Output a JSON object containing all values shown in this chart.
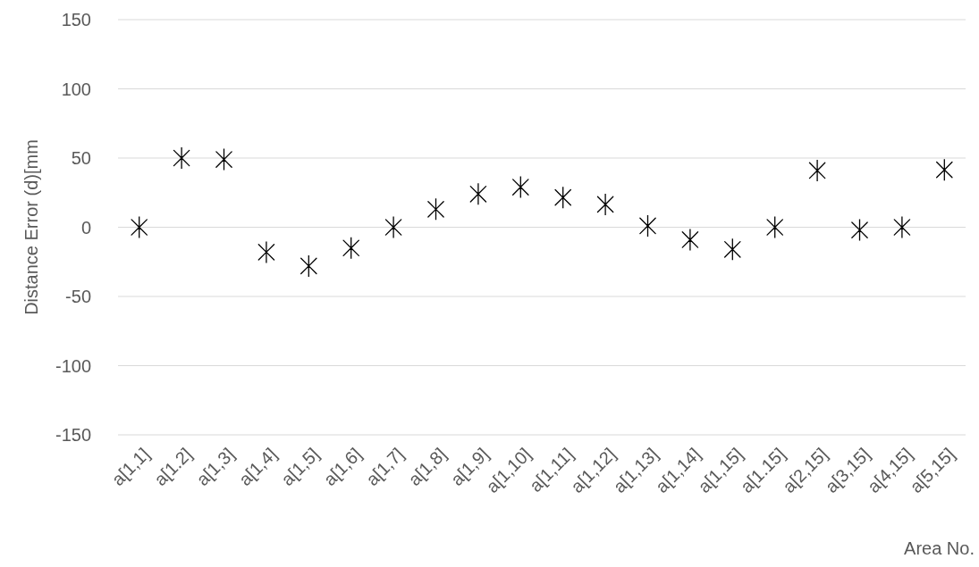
{
  "chart_data": {
    "type": "scatter",
    "xlabel": "Area No.",
    "ylabel": "Distance Error (d)[mm",
    "categories": [
      "a[1,1]",
      "a[1.2]",
      "a[1,3]",
      "a[1,4]",
      "a[1,5]",
      "a[1,6]",
      "a[1,7]",
      "a[1,8]",
      "a[1,9]",
      "a[1,10]",
      "a[1,11]",
      "a[1,12]",
      "a[1,13]",
      "a[1,14]",
      "a[1,15]",
      "a[1.15]",
      "a[2,15]",
      "a[3,15]",
      "a[4,15]",
      "a[5,15]"
    ],
    "series": [
      {
        "color": "#000000",
        "values": [
          0,
          50,
          49,
          -18,
          -28,
          -15,
          0,
          13,
          24,
          29,
          21.5,
          16.5,
          1,
          -9,
          -16,
          0,
          41,
          -2,
          0,
          41.5
        ]
      }
    ],
    "ylim": [
      -150,
      150
    ],
    "yticks": [
      -150,
      -100,
      -50,
      0,
      50,
      100,
      150
    ],
    "grid": "y",
    "marker": "cross"
  }
}
